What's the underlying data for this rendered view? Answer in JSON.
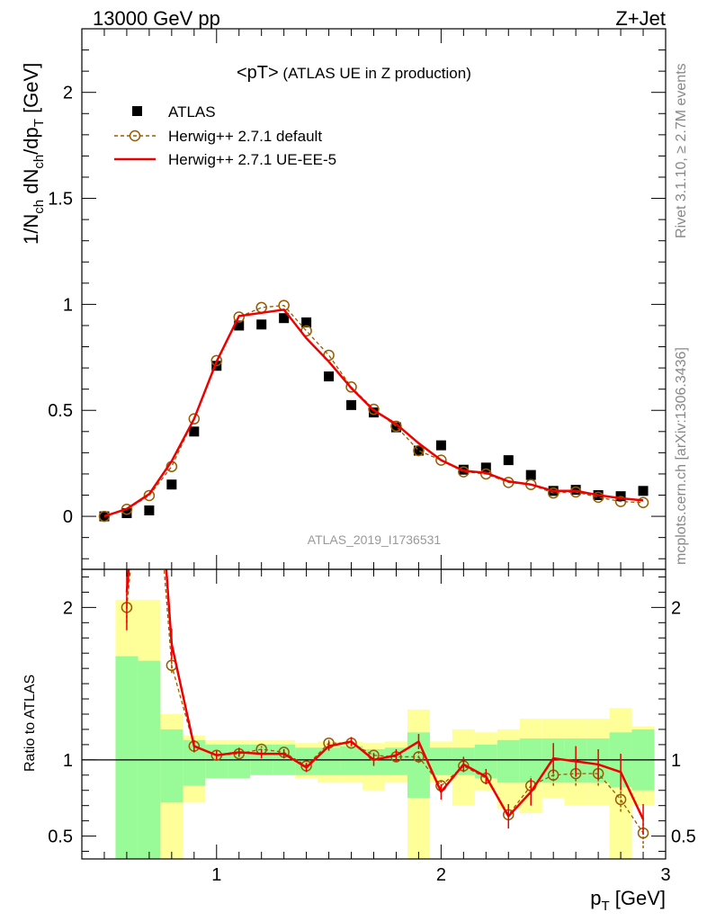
{
  "header": {
    "left": "13000 GeV pp",
    "right": "Z+Jet"
  },
  "side_text": {
    "rivet": "Rivet 3.1.10, ≥ 2.7M events",
    "mcplots": "mcplots.cern.ch [arXiv:1306.3436]"
  },
  "chart_data": [
    {
      "type": "scatter",
      "title": "<pT> (ATLAS UE in Z production)",
      "title_main": "<pT>",
      "title_sub": " (ATLAS UE in Z production)",
      "watermark": "ATLAS_2019_I1736531",
      "xlabel": "p_T [GeV]",
      "ylabel": "1/N_ch dN_ch/dp_T [GeV]",
      "xlim": [
        0.4,
        3.0
      ],
      "ylim": [
        -0.25,
        2.3
      ],
      "x_ticks": [
        1,
        2,
        3
      ],
      "y_ticks": [
        0,
        0.5,
        1,
        1.5,
        2
      ],
      "y_tick_labels": [
        "0",
        "0.5",
        "1",
        "1.5",
        "2"
      ],
      "legend_position": "top-left",
      "legend": [
        "ATLAS",
        "Herwig++ 2.7.1 default",
        "Herwig++ 2.7.1 UE-EE-5"
      ],
      "x": [
        0.5,
        0.6,
        0.7,
        0.8,
        0.9,
        1.0,
        1.1,
        1.2,
        1.3,
        1.4,
        1.5,
        1.6,
        1.7,
        1.8,
        1.9,
        2.0,
        2.1,
        2.2,
        2.3,
        2.4,
        2.5,
        2.6,
        2.7,
        2.8,
        2.9
      ],
      "series": [
        {
          "name": "ATLAS",
          "style": "square",
          "color": "#000000",
          "values": [
            0.0,
            0.015,
            0.028,
            0.15,
            0.4,
            0.71,
            0.9,
            0.905,
            0.935,
            0.915,
            0.66,
            0.525,
            0.49,
            0.42,
            0.31,
            0.335,
            0.22,
            0.23,
            0.265,
            0.195,
            0.12,
            0.125,
            0.1,
            0.095,
            0.12
          ]
        },
        {
          "name": "Herwig++ 2.7.1 default",
          "style": "dashed-circle",
          "color": "#9a5a00",
          "values": [
            0.0,
            0.033,
            0.098,
            0.235,
            0.46,
            0.735,
            0.94,
            0.985,
            0.995,
            0.875,
            0.76,
            0.61,
            0.505,
            0.425,
            0.31,
            0.265,
            0.21,
            0.2,
            0.16,
            0.15,
            0.11,
            0.115,
            0.09,
            0.07,
            0.065
          ]
        },
        {
          "name": "Herwig++ 2.7.1 UE-EE-5",
          "style": "line",
          "color": "#ee0000",
          "values": [
            0.0,
            0.035,
            0.105,
            0.26,
            0.46,
            0.73,
            0.945,
            0.96,
            0.975,
            0.84,
            0.73,
            0.605,
            0.5,
            0.435,
            0.345,
            0.265,
            0.215,
            0.205,
            0.165,
            0.15,
            0.12,
            0.12,
            0.1,
            0.085,
            0.075
          ]
        }
      ]
    },
    {
      "type": "line",
      "ylabel": "Ratio to ATLAS",
      "xlabel": "p_T [GeV]",
      "xlim": [
        0.4,
        3.0
      ],
      "ylim": [
        0.35,
        2.25
      ],
      "x_ticks": [
        1,
        2,
        3
      ],
      "y_ticks": [
        0.5,
        1,
        2
      ],
      "y_tick_labels": [
        "0.5",
        "1",
        "2"
      ],
      "x_tick_labels": [
        "1",
        "2",
        "3"
      ],
      "x": [
        0.6,
        0.7,
        0.8,
        0.9,
        1.0,
        1.1,
        1.2,
        1.3,
        1.4,
        1.5,
        1.6,
        1.7,
        1.8,
        1.9,
        2.0,
        2.1,
        2.2,
        2.3,
        2.4,
        2.5,
        2.6,
        2.7,
        2.8,
        2.9
      ],
      "band_edges": [
        0.55,
        0.65,
        0.75,
        0.85,
        0.95,
        1.05,
        1.15,
        1.25,
        1.35,
        1.45,
        1.55,
        1.65,
        1.75,
        1.85,
        1.95,
        2.05,
        2.15,
        2.25,
        2.35,
        2.45,
        2.55,
        2.65,
        2.75,
        2.85,
        2.95
      ],
      "stat_band": {
        "color": "#98fb98",
        "low": [
          0.3,
          0.3,
          0.72,
          0.83,
          0.88,
          0.88,
          0.9,
          0.9,
          0.9,
          0.9,
          0.9,
          0.9,
          0.9,
          0.75,
          0.9,
          0.9,
          0.88,
          0.85,
          0.85,
          0.85,
          0.85,
          0.85,
          0.82,
          0.8
        ],
        "high": [
          1.68,
          1.65,
          1.2,
          1.13,
          1.1,
          1.1,
          1.1,
          1.1,
          1.08,
          1.08,
          1.09,
          1.07,
          1.08,
          1.18,
          1.08,
          1.08,
          1.1,
          1.13,
          1.14,
          1.14,
          1.14,
          1.14,
          1.18,
          1.2
        ]
      },
      "syst_band": {
        "color": "#ffff99",
        "low": [
          0.3,
          0.3,
          0.3,
          0.72,
          0.9,
          0.9,
          0.9,
          0.9,
          0.88,
          0.85,
          0.85,
          0.8,
          0.85,
          0.35,
          0.85,
          0.7,
          0.8,
          0.68,
          0.65,
          0.75,
          0.7,
          0.7,
          0.35,
          0.7
        ],
        "high": [
          2.05,
          2.05,
          1.3,
          1.16,
          1.13,
          1.13,
          1.13,
          1.13,
          1.11,
          1.12,
          1.12,
          1.11,
          1.12,
          1.33,
          1.12,
          1.2,
          1.18,
          1.2,
          1.27,
          1.27,
          1.27,
          1.27,
          1.34,
          1.22
        ]
      },
      "series": [
        {
          "name": "Herwig++ 2.7.1 default",
          "style": "dashed-circle",
          "color": "#9a5a00",
          "values": [
            2.0,
            3.5,
            1.62,
            1.09,
            1.03,
            1.04,
            1.07,
            1.05,
            0.96,
            1.11,
            1.11,
            1.03,
            1.02,
            1.02,
            0.83,
            0.96,
            0.88,
            0.64,
            0.83,
            0.9,
            0.91,
            0.91,
            0.74,
            0.52
          ],
          "err": [
            0.1,
            0.2,
            0.05,
            0.04,
            0.03,
            0.02,
            0.02,
            0.02,
            0.02,
            0.02,
            0.02,
            0.03,
            0.03,
            0.04,
            0.04,
            0.04,
            0.04,
            0.05,
            0.06,
            0.07,
            0.08,
            0.08,
            0.08,
            0.1
          ]
        },
        {
          "name": "Herwig++ 2.7.1 UE-EE-5",
          "style": "line",
          "color": "#ee0000",
          "values": [
            2.1,
            3.8,
            1.76,
            1.09,
            1.03,
            1.05,
            1.04,
            1.04,
            0.95,
            1.09,
            1.12,
            1.0,
            1.03,
            1.12,
            0.79,
            0.97,
            0.89,
            0.63,
            0.79,
            1.01,
            0.99,
            0.97,
            0.92,
            0.61
          ],
          "err": [
            0.25,
            0.2,
            0.1,
            0.04,
            0.03,
            0.03,
            0.03,
            0.03,
            0.03,
            0.03,
            0.03,
            0.04,
            0.04,
            0.05,
            0.05,
            0.05,
            0.05,
            0.08,
            0.09,
            0.1,
            0.1,
            0.1,
            0.12,
            0.1
          ]
        }
      ]
    }
  ]
}
